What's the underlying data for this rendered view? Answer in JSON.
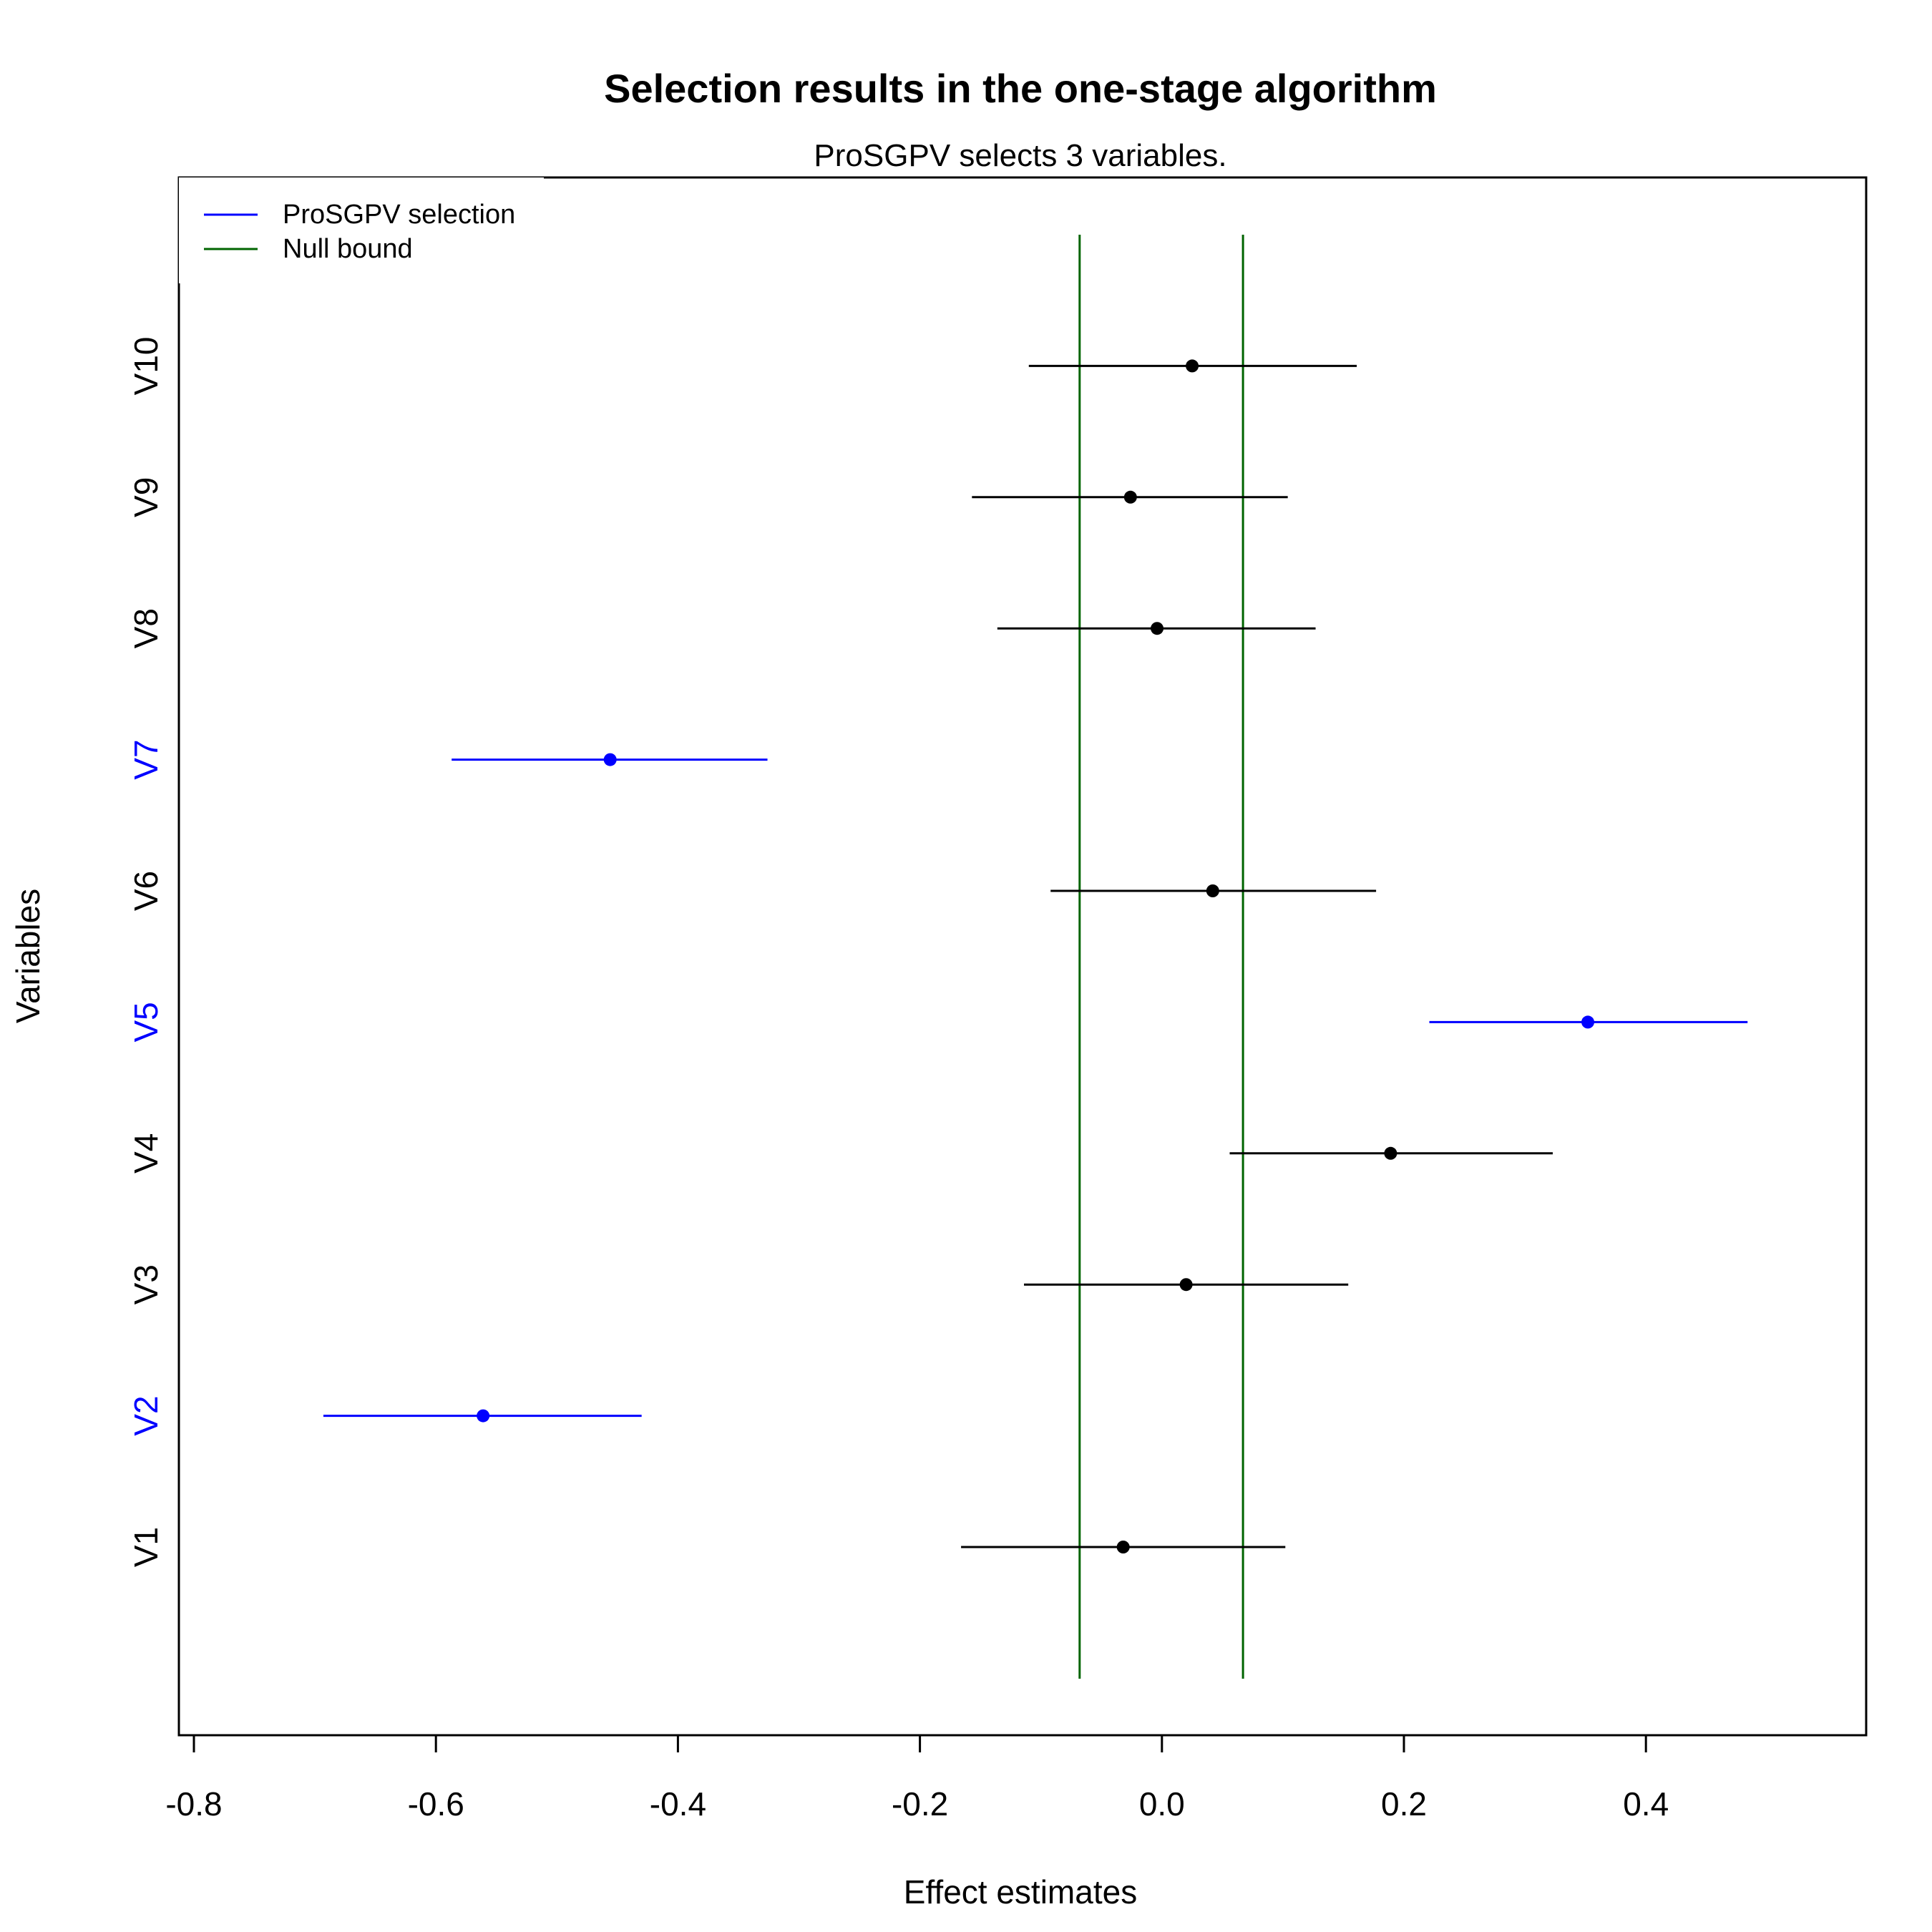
{
  "chart_data": {
    "type": "forest",
    "title": "Selection results in the one-stage algorithm",
    "subtitle": "ProSGPV selects 3 variables.",
    "xlabel": "Effect estimates",
    "ylabel": "Variables",
    "xlim": [
      -0.82,
      0.58
    ],
    "x_ticks": [
      -0.8,
      -0.6,
      -0.4,
      -0.2,
      0.0,
      0.2,
      0.4
    ],
    "x_tick_labels": [
      "-0.8",
      "-0.6",
      "-0.4",
      "-0.2",
      "0.0",
      "0.2",
      "0.4"
    ],
    "null_bound": [
      -0.068,
      0.067
    ],
    "legend": {
      "position": "top-left",
      "entries": [
        {
          "label": "ProSGPV selection",
          "color": "#0000ff"
        },
        {
          "label": "Null bound",
          "color": "#006400"
        }
      ]
    },
    "colors": {
      "selected": "#0000ff",
      "unselected": "#000000",
      "null_bound": "#006400"
    },
    "variables": [
      {
        "name": "V1",
        "estimate": -0.032,
        "lower": -0.166,
        "upper": 0.102,
        "selected": false
      },
      {
        "name": "V2",
        "estimate": -0.561,
        "lower": -0.693,
        "upper": -0.43,
        "selected": true
      },
      {
        "name": "V3",
        "estimate": 0.02,
        "lower": -0.114,
        "upper": 0.154,
        "selected": false
      },
      {
        "name": "V4",
        "estimate": 0.189,
        "lower": 0.056,
        "upper": 0.323,
        "selected": false
      },
      {
        "name": "V5",
        "estimate": 0.352,
        "lower": 0.221,
        "upper": 0.484,
        "selected": true
      },
      {
        "name": "V6",
        "estimate": 0.042,
        "lower": -0.092,
        "upper": 0.177,
        "selected": false
      },
      {
        "name": "V7",
        "estimate": -0.456,
        "lower": -0.587,
        "upper": -0.326,
        "selected": true
      },
      {
        "name": "V8",
        "estimate": -0.004,
        "lower": -0.136,
        "upper": 0.127,
        "selected": false
      },
      {
        "name": "V9",
        "estimate": -0.026,
        "lower": -0.157,
        "upper": 0.104,
        "selected": false
      },
      {
        "name": "V10",
        "estimate": 0.025,
        "lower": -0.11,
        "upper": 0.161,
        "selected": false
      }
    ]
  }
}
